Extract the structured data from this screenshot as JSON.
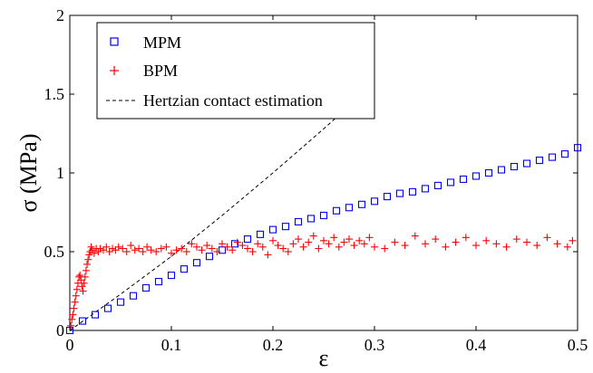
{
  "chart_data": {
    "type": "scatter",
    "title": "",
    "xlabel": "ε",
    "ylabel": "σ (MPa)",
    "xlim": [
      0,
      0.5
    ],
    "ylim": [
      0,
      2
    ],
    "x_ticks": [
      "0",
      "0.1",
      "0.2",
      "0.3",
      "0.4",
      "0.5"
    ],
    "y_ticks": [
      "0",
      "0.5",
      "1",
      "1.5",
      "2"
    ],
    "x_tick_values": [
      0,
      0.1,
      0.2,
      0.3,
      0.4,
      0.5
    ],
    "y_tick_values": [
      0,
      0.5,
      1,
      1.5,
      2
    ],
    "grid": false,
    "legend_position": "top-left",
    "series": [
      {
        "name": "MPM",
        "marker": "square",
        "color": "#0000ff",
        "x": [
          0,
          0.0125,
          0.025,
          0.0375,
          0.05,
          0.0625,
          0.075,
          0.0875,
          0.1,
          0.1125,
          0.125,
          0.1375,
          0.15,
          0.1625,
          0.175,
          0.1875,
          0.2,
          0.2125,
          0.225,
          0.2375,
          0.25,
          0.2625,
          0.275,
          0.2875,
          0.3,
          0.3125,
          0.325,
          0.3375,
          0.35,
          0.3625,
          0.375,
          0.3875,
          0.4,
          0.4125,
          0.425,
          0.4375,
          0.45,
          0.4625,
          0.475,
          0.4875,
          0.5
        ],
        "y": [
          0,
          0.06,
          0.1,
          0.14,
          0.18,
          0.22,
          0.27,
          0.31,
          0.35,
          0.39,
          0.43,
          0.47,
          0.51,
          0.55,
          0.58,
          0.61,
          0.64,
          0.66,
          0.69,
          0.71,
          0.73,
          0.76,
          0.78,
          0.8,
          0.82,
          0.85,
          0.87,
          0.88,
          0.9,
          0.92,
          0.94,
          0.96,
          0.98,
          1.0,
          1.02,
          1.04,
          1.06,
          1.08,
          1.1,
          1.12,
          1.16
        ]
      },
      {
        "name": "BPM",
        "marker": "plus",
        "color": "#ff0000",
        "x": [
          0.001,
          0.002,
          0.003,
          0.004,
          0.005,
          0.006,
          0.007,
          0.008,
          0.009,
          0.01,
          0.011,
          0.012,
          0.013,
          0.014,
          0.015,
          0.016,
          0.017,
          0.018,
          0.019,
          0.02,
          0.021,
          0.022,
          0.024,
          0.026,
          0.028,
          0.03,
          0.033,
          0.036,
          0.039,
          0.042,
          0.045,
          0.048,
          0.052,
          0.056,
          0.06,
          0.064,
          0.068,
          0.072,
          0.076,
          0.08,
          0.085,
          0.09,
          0.095,
          0.1,
          0.105,
          0.11,
          0.115,
          0.12,
          0.125,
          0.13,
          0.135,
          0.14,
          0.145,
          0.15,
          0.155,
          0.16,
          0.165,
          0.17,
          0.175,
          0.18,
          0.185,
          0.19,
          0.195,
          0.2,
          0.205,
          0.21,
          0.215,
          0.22,
          0.225,
          0.23,
          0.235,
          0.24,
          0.245,
          0.25,
          0.255,
          0.26,
          0.265,
          0.27,
          0.275,
          0.28,
          0.285,
          0.29,
          0.295,
          0.3,
          0.31,
          0.32,
          0.33,
          0.34,
          0.35,
          0.36,
          0.37,
          0.38,
          0.39,
          0.4,
          0.41,
          0.42,
          0.43,
          0.44,
          0.45,
          0.46,
          0.47,
          0.48,
          0.49,
          0.495
        ],
        "y": [
          0.03,
          0.07,
          0.1,
          0.14,
          0.18,
          0.22,
          0.26,
          0.3,
          0.34,
          0.35,
          0.32,
          0.28,
          0.25,
          0.3,
          0.34,
          0.38,
          0.42,
          0.45,
          0.48,
          0.5,
          0.53,
          0.51,
          0.49,
          0.52,
          0.5,
          0.52,
          0.51,
          0.53,
          0.5,
          0.52,
          0.51,
          0.53,
          0.52,
          0.5,
          0.54,
          0.51,
          0.52,
          0.5,
          0.53,
          0.51,
          0.5,
          0.52,
          0.53,
          0.49,
          0.51,
          0.52,
          0.5,
          0.55,
          0.53,
          0.51,
          0.54,
          0.52,
          0.5,
          0.55,
          0.53,
          0.51,
          0.56,
          0.54,
          0.52,
          0.5,
          0.55,
          0.53,
          0.48,
          0.57,
          0.54,
          0.52,
          0.5,
          0.55,
          0.58,
          0.53,
          0.56,
          0.6,
          0.52,
          0.57,
          0.55,
          0.59,
          0.53,
          0.56,
          0.58,
          0.54,
          0.57,
          0.55,
          0.59,
          0.53,
          0.52,
          0.56,
          0.54,
          0.6,
          0.55,
          0.58,
          0.53,
          0.56,
          0.59,
          0.54,
          0.57,
          0.55,
          0.53,
          0.58,
          0.56,
          0.54,
          0.59,
          0.55,
          0.53,
          0.57
        ]
      },
      {
        "name": "Hertzian contact estimation",
        "style": "dashed",
        "color": "#000000",
        "x": [
          0,
          0.05,
          0.1,
          0.15,
          0.2,
          0.25,
          0.3
        ],
        "y": [
          0,
          0.23,
          0.47,
          0.73,
          1.0,
          1.28,
          1.57
        ]
      }
    ]
  }
}
